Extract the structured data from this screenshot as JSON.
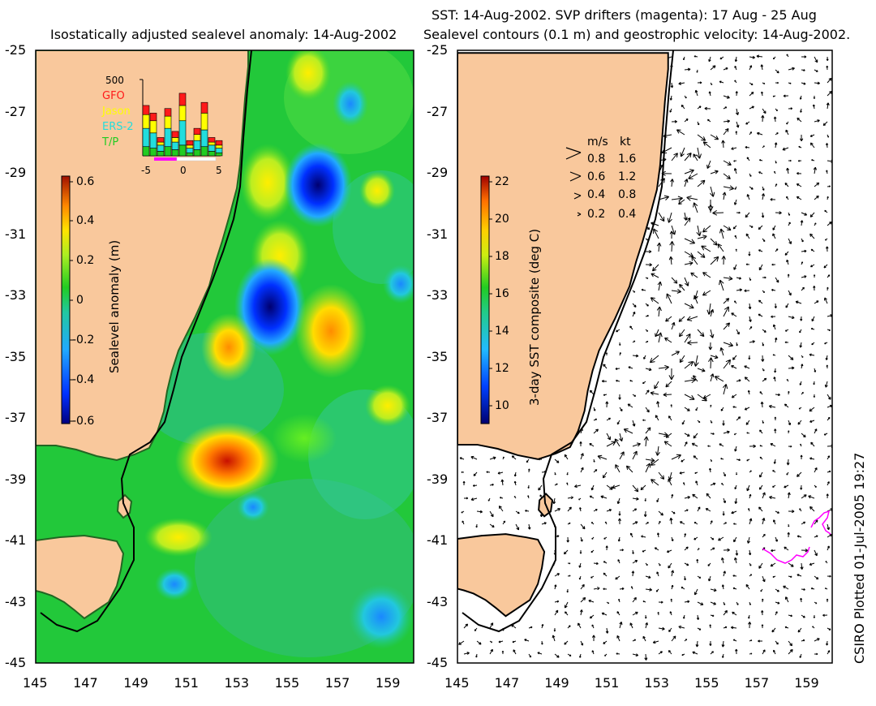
{
  "left_panel": {
    "title": "Isostatically adjusted sealevel anomaly: 14-Aug-2002",
    "colorbar_label": "Sealevel anomaly (m)",
    "colorbar_ticks": [
      "0.6",
      "0.4",
      "0.2",
      "0",
      "-0.2",
      "-0.4",
      "-0.6"
    ],
    "colorbar_range": [
      -0.6,
      0.6
    ],
    "inset": {
      "ymax_label": "500",
      "legend": [
        {
          "name": "GFO",
          "color": "#ff1a1a"
        },
        {
          "name": "Jason",
          "color": "#ffff00"
        },
        {
          "name": "ERS-2",
          "color": "#22dddd"
        },
        {
          "name": "T/P",
          "color": "#22cc22"
        }
      ],
      "x_ticks": [
        "-5",
        "0",
        "5"
      ],
      "bars": [
        {
          "day": -5,
          "tp": 60,
          "ers": 120,
          "jason": 90,
          "gfo": 60
        },
        {
          "day": -4,
          "tp": 50,
          "ers": 100,
          "jason": 80,
          "gfo": 50
        },
        {
          "day": -3,
          "tp": 30,
          "ers": 40,
          "jason": 20,
          "gfo": 30
        },
        {
          "day": -2,
          "tp": 60,
          "ers": 120,
          "jason": 80,
          "gfo": 50
        },
        {
          "day": -1,
          "tp": 40,
          "ers": 50,
          "jason": 30,
          "gfo": 40
        },
        {
          "day": 0,
          "tp": 70,
          "ers": 160,
          "jason": 100,
          "gfo": 80
        },
        {
          "day": 1,
          "tp": 20,
          "ers": 30,
          "jason": 20,
          "gfo": 30
        },
        {
          "day": 2,
          "tp": 40,
          "ers": 60,
          "jason": 40,
          "gfo": 40
        },
        {
          "day": 3,
          "tp": 60,
          "ers": 110,
          "jason": 110,
          "gfo": 70
        },
        {
          "day": 4,
          "tp": 30,
          "ers": 40,
          "jason": 20,
          "gfo": 30
        },
        {
          "day": 5,
          "tp": 20,
          "ers": 30,
          "jason": 20,
          "gfo": 30
        }
      ]
    }
  },
  "right_panel": {
    "title_line1": "SST: 14-Aug-2002. SVP drifters (magenta): 17 Aug - 25 Aug",
    "title_line2": "Sealevel contours (0.1 m) and geostrophic velocity: 14-Aug-2002.",
    "colorbar_label": "3-day SST composite (deg C)",
    "colorbar_ticks": [
      "22",
      "20",
      "18",
      "16",
      "14",
      "12",
      "10"
    ],
    "colorbar_range": [
      9,
      22
    ],
    "velocity_legend": {
      "header_ms": "m/s",
      "header_kt": "kt",
      "rows": [
        {
          "ms": "0.8",
          "kt": "1.6"
        },
        {
          "ms": "0.6",
          "kt": "1.2"
        },
        {
          "ms": "0.4",
          "kt": "0.8"
        },
        {
          "ms": "0.2",
          "kt": "0.4"
        }
      ]
    }
  },
  "axes": {
    "y_ticks": [
      "-25",
      "-27",
      "-29",
      "-31",
      "-33",
      "-35",
      "-37",
      "-39",
      "-41",
      "-43",
      "-45"
    ],
    "x_ticks": [
      "145",
      "147",
      "149",
      "151",
      "153",
      "155",
      "157",
      "159"
    ],
    "lat_range": [
      -45,
      -25
    ],
    "lon_range": [
      145,
      160
    ]
  },
  "footer": "CSIRO Plotted 01-Jul-2005 19:27",
  "colors": {
    "land": "#f9c89c",
    "ocean_base": "#22c83a",
    "warm_anomaly": "#ff6a00",
    "cold_anomaly": "#00008a",
    "drifter": "#ff00ff"
  }
}
